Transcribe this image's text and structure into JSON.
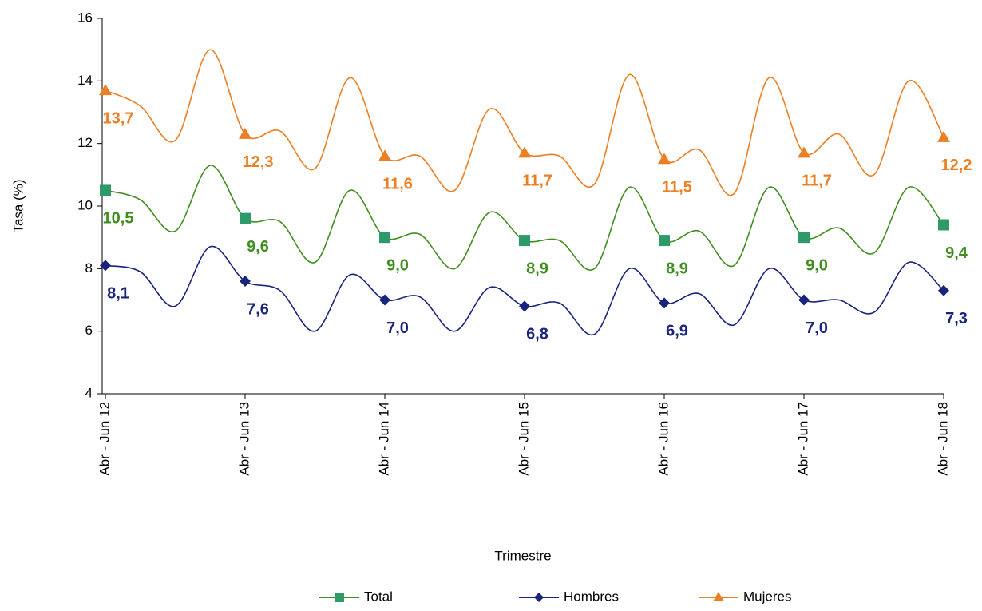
{
  "chart_data": {
    "type": "line",
    "x_label": "Trimestre",
    "y_label": "Tasa (%)",
    "categories": [
      "Abr - Jun 12",
      null,
      null,
      null,
      "Abr - Jun 13",
      null,
      null,
      null,
      "Abr - Jun 14",
      null,
      null,
      null,
      "Abr - Jun 15",
      null,
      null,
      null,
      "Abr - Jun 16",
      null,
      null,
      null,
      "Abr - Jun 17",
      null,
      null,
      null,
      "Abr - Jun 18"
    ],
    "ylim": [
      4,
      16
    ],
    "yticks": [
      4,
      6,
      8,
      10,
      12,
      14,
      16
    ],
    "series": [
      {
        "name": "Total",
        "color": "#3f8f1f",
        "marker": "square",
        "marker_color": "#2e9a6a",
        "values": [
          10.5,
          10.2,
          9.2,
          11.3,
          9.6,
          9.5,
          8.2,
          10.5,
          9.0,
          9.1,
          8.0,
          9.8,
          8.9,
          8.9,
          8.0,
          10.6,
          8.9,
          9.2,
          8.1,
          10.6,
          9.0,
          9.3,
          8.5,
          10.6,
          9.4
        ],
        "value_labels": [
          "10,5",
          null,
          null,
          null,
          "9,6",
          null,
          null,
          null,
          "9,0",
          null,
          null,
          null,
          "8,9",
          null,
          null,
          null,
          "8,9",
          null,
          null,
          null,
          "9,0",
          null,
          null,
          null,
          "9,4"
        ]
      },
      {
        "name": "Hombres",
        "color": "#1a237e",
        "marker": "diamond",
        "marker_color": "#1a237e",
        "values": [
          8.1,
          7.9,
          6.8,
          8.7,
          7.6,
          7.3,
          6.0,
          7.8,
          7.0,
          7.1,
          6.0,
          7.4,
          6.8,
          6.9,
          5.9,
          8.0,
          6.9,
          7.2,
          6.2,
          8.0,
          7.0,
          7.0,
          6.6,
          8.2,
          7.3
        ],
        "value_labels": [
          "8,1",
          null,
          null,
          null,
          "7,6",
          null,
          null,
          null,
          "7,0",
          null,
          null,
          null,
          "6,8",
          null,
          null,
          null,
          "6,9",
          null,
          null,
          null,
          "7,0",
          null,
          null,
          null,
          "7,3"
        ]
      },
      {
        "name": "Mujeres",
        "color": "#ec7f22",
        "marker": "triangle",
        "marker_color": "#ec7f22",
        "values": [
          13.7,
          13.2,
          12.1,
          15.0,
          12.3,
          12.4,
          11.2,
          14.1,
          11.6,
          11.6,
          10.5,
          13.1,
          11.7,
          11.6,
          10.7,
          14.2,
          11.5,
          11.8,
          10.4,
          14.1,
          11.7,
          12.3,
          11.0,
          14.0,
          12.2
        ],
        "value_labels": [
          "13,7",
          null,
          null,
          null,
          "12,3",
          null,
          null,
          null,
          "11,6",
          null,
          null,
          null,
          "11,7",
          null,
          null,
          null,
          "11,5",
          null,
          null,
          null,
          "11,7",
          null,
          null,
          null,
          "12,2"
        ]
      }
    ]
  }
}
